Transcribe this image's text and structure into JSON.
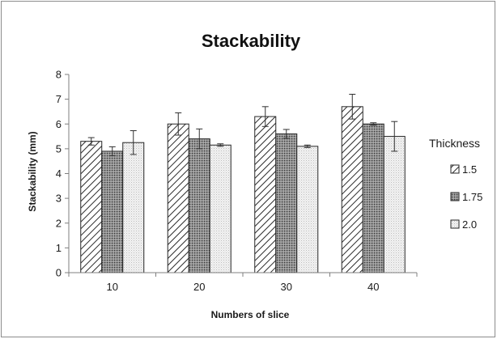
{
  "chart_data": {
    "type": "bar",
    "title": "Stackability",
    "xlabel": "Numbers of slice",
    "ylabel": "Stackability (mm)",
    "categories": [
      "10",
      "20",
      "30",
      "40"
    ],
    "ylim": [
      0,
      8
    ],
    "yticks": [
      "0",
      "1",
      "2",
      "3",
      "4",
      "5",
      "6",
      "7",
      "8"
    ],
    "legend_title": "Thickness",
    "legend_position": "right",
    "grid": false,
    "series": [
      {
        "name": "1.5",
        "pattern": "diagonal-hatch",
        "values": [
          5.3,
          6.0,
          6.3,
          6.7
        ],
        "errors": [
          0.15,
          0.45,
          0.4,
          0.5
        ]
      },
      {
        "name": "1.75",
        "pattern": "dark-dots",
        "values": [
          4.9,
          5.4,
          5.6,
          6.0
        ],
        "errors": [
          0.18,
          0.4,
          0.18,
          0.05
        ]
      },
      {
        "name": "2.0",
        "pattern": "light-dots",
        "values": [
          5.25,
          5.15,
          5.1,
          5.5
        ],
        "errors": [
          0.48,
          0.05,
          0.05,
          0.6
        ]
      }
    ]
  }
}
